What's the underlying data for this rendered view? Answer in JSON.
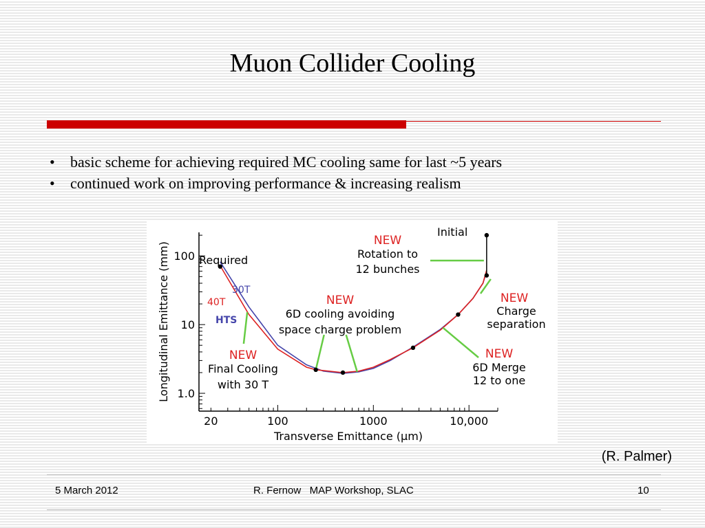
{
  "slide": {
    "title": "Muon Collider Cooling",
    "bullets": [
      "basic scheme for achieving required MC cooling same for last ~5 years",
      "continued work on improving performance & increasing realism"
    ],
    "bullet_char": "•",
    "credit": "(R. Palmer)",
    "footer": {
      "date": "5 March 2012",
      "center": "R. Fernow   MAP Workshop, SLAC",
      "page": "10"
    },
    "colors": {
      "accent_red": "#cc0000",
      "callout_green": "#66cc44",
      "new_red": "#dd2222",
      "curve_blue": "#4444aa"
    }
  },
  "chart_data": {
    "type": "line",
    "xlabel": "Transverse Emittance (μm)",
    "ylabel": "Longitudinal Emittance (mm)",
    "x_scale": "log",
    "y_scale": "log",
    "xlim": [
      15,
      20000
    ],
    "ylim": [
      0.55,
      220
    ],
    "xticks": [
      {
        "v": 20,
        "label": "20"
      },
      {
        "v": 100,
        "label": "100"
      },
      {
        "v": 1000,
        "label": "1000"
      },
      {
        "v": 10000,
        "label": "10,000"
      }
    ],
    "yticks": [
      {
        "v": 1,
        "label": "1.0"
      },
      {
        "v": 10,
        "label": "10"
      },
      {
        "v": 100,
        "label": "100"
      }
    ],
    "series": [
      {
        "name": "30T",
        "color": "#4444aa",
        "points": [
          [
            25,
            82
          ],
          [
            50,
            18
          ],
          [
            100,
            5
          ],
          [
            200,
            2.6
          ],
          [
            300,
            2.1
          ],
          [
            480,
            1.95
          ],
          [
            700,
            2.05
          ],
          [
            1000,
            2.3
          ],
          [
            1500,
            3
          ],
          [
            2600,
            4.7
          ],
          [
            5000,
            8.5
          ],
          [
            7700,
            14
          ],
          [
            11000,
            24
          ],
          [
            14000,
            40
          ],
          [
            15300,
            60
          ]
        ]
      },
      {
        "name": "40T",
        "color": "#dd2222",
        "points": [
          [
            25,
            72
          ],
          [
            50,
            14
          ],
          [
            100,
            4.4
          ],
          [
            200,
            2.4
          ],
          [
            250,
            2.2
          ],
          [
            480,
            2.0
          ],
          [
            700,
            2.1
          ],
          [
            1000,
            2.4
          ],
          [
            1500,
            3.1
          ],
          [
            2600,
            4.6
          ],
          [
            5000,
            8.3
          ],
          [
            7700,
            14
          ],
          [
            11000,
            24
          ],
          [
            14000,
            40
          ],
          [
            15300,
            62
          ]
        ]
      }
    ],
    "extra_series_labels": [
      "HTS"
    ],
    "markers": [
      [
        25,
        70
      ],
      [
        250,
        2.2
      ],
      [
        480,
        2.0
      ],
      [
        2600,
        4.6
      ],
      [
        7700,
        14
      ],
      [
        15300,
        52
      ],
      [
        15300,
        200
      ]
    ],
    "annotations": {
      "required": "Required",
      "initial": "Initial",
      "new": "NEW",
      "rotation": [
        "Rotation to",
        "12 bunches"
      ],
      "charge": [
        "Charge",
        "separation"
      ],
      "sixd": [
        "6D cooling avoiding",
        "space charge problem"
      ],
      "merge": [
        "6D Merge",
        "12 to one"
      ],
      "final": [
        "Final Cooling",
        "with 30 T"
      ]
    }
  }
}
